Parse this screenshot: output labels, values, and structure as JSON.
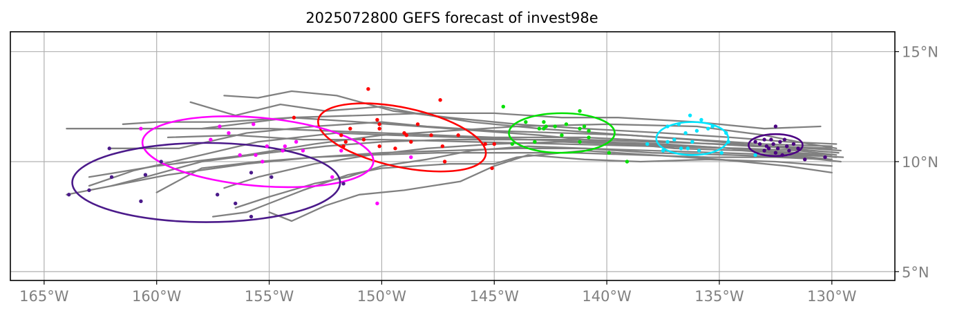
{
  "chart_data": {
    "type": "scatter",
    "title": "2025072800 GEFS forecast of invest98e",
    "xlabel": "",
    "ylabel": "",
    "xlim": [
      -166.5,
      -127.2
    ],
    "ylim": [
      4.6,
      15.9
    ],
    "grid": true,
    "x_ticks": [
      -165,
      -160,
      -155,
      -150,
      -145,
      -140,
      -135,
      -130
    ],
    "x_tick_labels": [
      "165°W",
      "160°W",
      "155°W",
      "150°W",
      "145°W",
      "140°W",
      "135°W",
      "130°W"
    ],
    "y_ticks": [
      5,
      10,
      15
    ],
    "y_tick_labels": [
      "5°N",
      "10°N",
      "15°N"
    ],
    "colors": {
      "track": "#808080",
      "day1": "#4b0082",
      "day2": "#00e5ff",
      "day3": "#00e000",
      "day4": "#ff0000",
      "day5": "#ff00ff",
      "day6": "#4b1a8a"
    },
    "tracks": [
      [
        [
          -129.6,
          10.5
        ],
        [
          -131.0,
          10.6
        ],
        [
          -133.5,
          10.7
        ],
        [
          -137,
          10.9
        ],
        [
          -141,
          11.1
        ],
        [
          -145,
          11.1
        ],
        [
          -150,
          11.3
        ],
        [
          -155,
          11.5
        ],
        [
          -160,
          11.5
        ],
        [
          -164,
          11.5
        ]
      ],
      [
        [
          -129.8,
          10.3
        ],
        [
          -131.5,
          10.5
        ],
        [
          -134,
          10.6
        ],
        [
          -138,
          10.7
        ],
        [
          -142,
          10.8
        ],
        [
          -146,
          10.9
        ],
        [
          -150,
          11.0
        ],
        [
          -153.5,
          11.0
        ],
        [
          -156.5,
          11.2
        ],
        [
          -159.5,
          11.1
        ]
      ],
      [
        [
          -129.5,
          10.2
        ],
        [
          -131.5,
          10.3
        ],
        [
          -134,
          10.5
        ],
        [
          -137,
          10.6
        ],
        [
          -140,
          10.9
        ],
        [
          -143,
          11.2
        ],
        [
          -147,
          11.5
        ],
        [
          -151,
          11.8
        ],
        [
          -154,
          12.0
        ],
        [
          -158,
          11.5
        ]
      ],
      [
        [
          -129.8,
          10.6
        ],
        [
          -131,
          10.8
        ],
        [
          -133,
          11.2
        ],
        [
          -136,
          11.6
        ],
        [
          -140,
          11.7
        ],
        [
          -144,
          11.6
        ],
        [
          -147,
          11.4
        ],
        [
          -150,
          11.2
        ],
        [
          -153,
          10.8
        ],
        [
          -156,
          10.3
        ],
        [
          -160,
          9.8
        ],
        [
          -163,
          9.3
        ]
      ],
      [
        [
          -130,
          10.1
        ],
        [
          -132,
          10.3
        ],
        [
          -135,
          10.4
        ],
        [
          -138,
          10.5
        ],
        [
          -141,
          10.6
        ],
        [
          -144,
          10.6
        ],
        [
          -147,
          10.5
        ],
        [
          -150,
          10.4
        ],
        [
          -153,
          10.2
        ],
        [
          -156,
          9.9
        ],
        [
          -159.5,
          9.4
        ],
        [
          -164,
          8.5
        ]
      ],
      [
        [
          -129.7,
          10.4
        ],
        [
          -132,
          10.6
        ],
        [
          -135,
          10.9
        ],
        [
          -139,
          11.2
        ],
        [
          -143,
          11.5
        ],
        [
          -146,
          11.8
        ],
        [
          -148.5,
          12.2
        ],
        [
          -150,
          12.5
        ],
        [
          -152.5,
          12.3
        ],
        [
          -154.5,
          12.6
        ],
        [
          -156.5,
          12.1
        ],
        [
          -158.5,
          12.7
        ]
      ],
      [
        [
          -130,
          9.5
        ],
        [
          -132,
          9.8
        ],
        [
          -135,
          10.1
        ],
        [
          -138,
          10.3
        ],
        [
          -141,
          10.5
        ],
        [
          -144,
          10.2
        ],
        [
          -145,
          9.9
        ],
        [
          -147,
          9.9
        ],
        [
          -150,
          9.7
        ],
        [
          -151.5,
          9.4
        ],
        [
          -153.5,
          8.7
        ],
        [
          -156,
          7.7
        ],
        [
          -157.5,
          7.5
        ]
      ],
      [
        [
          -130,
          9.8
        ],
        [
          -132.5,
          10.0
        ],
        [
          -135.5,
          10.1
        ],
        [
          -138.5,
          10.0
        ],
        [
          -141,
          10.1
        ],
        [
          -143.5,
          10.3
        ],
        [
          -145,
          9.8
        ],
        [
          -146.5,
          9.1
        ],
        [
          -149,
          8.7
        ],
        [
          -151,
          8.5
        ],
        [
          -152.5,
          8.0
        ],
        [
          -154,
          7.3
        ],
        [
          -155,
          7.7
        ]
      ],
      [
        [
          -129.6,
          10.0
        ],
        [
          -131.5,
          10.2
        ],
        [
          -134.5,
          10.3
        ],
        [
          -138,
          10.4
        ],
        [
          -141,
          10.6
        ],
        [
          -143.5,
          10.7
        ],
        [
          -146,
          10.5
        ],
        [
          -148,
          10.1
        ],
        [
          -150,
          9.8
        ],
        [
          -151.5,
          9.3
        ],
        [
          -153,
          9.0
        ],
        [
          -155,
          8.4
        ],
        [
          -156.5,
          7.9
        ]
      ],
      [
        [
          -129.8,
          10.2
        ],
        [
          -132,
          10.4
        ],
        [
          -134.5,
          10.6
        ],
        [
          -137.5,
          10.8
        ],
        [
          -140.5,
          10.9
        ],
        [
          -143.5,
          11.0
        ],
        [
          -146.5,
          11.1
        ],
        [
          -149.5,
          11.2
        ],
        [
          -152,
          11.3
        ],
        [
          -155.5,
          10.9
        ],
        [
          -158,
          10.3
        ],
        [
          -161,
          9.6
        ],
        [
          -163,
          8.9
        ]
      ],
      [
        [
          -130,
          10.3
        ],
        [
          -133,
          10.5
        ],
        [
          -136,
          10.7
        ],
        [
          -139.5,
          10.8
        ],
        [
          -142,
          10.9
        ],
        [
          -145,
          10.8
        ],
        [
          -148,
          10.6
        ],
        [
          -150.5,
          10.3
        ],
        [
          -153,
          9.9
        ],
        [
          -155.5,
          9.3
        ],
        [
          -157,
          8.8
        ]
      ],
      [
        [
          -129.8,
          10.8
        ],
        [
          -132,
          10.9
        ],
        [
          -134.5,
          11.1
        ],
        [
          -137.5,
          11.3
        ],
        [
          -141,
          11.5
        ],
        [
          -144,
          11.7
        ],
        [
          -147,
          12.0
        ],
        [
          -149.5,
          12.3
        ],
        [
          -152,
          13.0
        ],
        [
          -154,
          13.2
        ],
        [
          -155.5,
          12.9
        ],
        [
          -157,
          13.0
        ]
      ],
      [
        [
          -130.5,
          11.6
        ],
        [
          -133,
          11.5
        ],
        [
          -136,
          11.8
        ],
        [
          -139.5,
          12.0
        ],
        [
          -142,
          12.0
        ],
        [
          -145,
          12.2
        ],
        [
          -148,
          12.2
        ],
        [
          -151,
          12.1
        ],
        [
          -154,
          12.0
        ],
        [
          -157,
          11.8
        ],
        [
          -160,
          11.8
        ],
        [
          -161.5,
          11.7
        ]
      ],
      [
        [
          -130,
          10.6
        ],
        [
          -132.5,
          10.7
        ],
        [
          -135,
          10.8
        ],
        [
          -138,
          10.9
        ],
        [
          -141,
          11.0
        ],
        [
          -144,
          11.0
        ],
        [
          -147,
          11.0
        ],
        [
          -150,
          10.9
        ],
        [
          -152.5,
          10.7
        ],
        [
          -155,
          10.4
        ],
        [
          -158,
          10.0
        ],
        [
          -160.5,
          9.3
        ],
        [
          -162,
          8.9
        ]
      ],
      [
        [
          -130.2,
          10.1
        ],
        [
          -132.5,
          10.2
        ],
        [
          -135.5,
          10.2
        ],
        [
          -138.5,
          10.3
        ],
        [
          -141.5,
          10.4
        ],
        [
          -144.5,
          10.4
        ],
        [
          -147.5,
          10.4
        ],
        [
          -150.5,
          10.3
        ],
        [
          -153,
          10.2
        ],
        [
          -155.5,
          10.0
        ],
        [
          -158,
          9.7
        ],
        [
          -160,
          8.6
        ]
      ],
      [
        [
          -130,
          10.7
        ],
        [
          -133,
          10.8
        ],
        [
          -136,
          11.0
        ],
        [
          -139,
          11.2
        ],
        [
          -142,
          11.3
        ],
        [
          -145,
          11.4
        ],
        [
          -148,
          11.6
        ],
        [
          -150,
          11.8
        ],
        [
          -153,
          11.6
        ],
        [
          -156,
          11.3
        ],
        [
          -159,
          10.6
        ],
        [
          -162,
          10.6
        ]
      ]
    ],
    "series": [
      {
        "color": "#4b0082",
        "points": [
          [
            -130.3,
            10.2
          ],
          [
            -131.2,
            10.1
          ],
          [
            -131.5,
            10.6
          ],
          [
            -131.7,
            10.8
          ],
          [
            -131.9,
            10.5
          ],
          [
            -132.0,
            10.7
          ],
          [
            -132.1,
            11.0
          ],
          [
            -132.2,
            10.3
          ],
          [
            -132.3,
            10.9
          ],
          [
            -132.4,
            10.6
          ],
          [
            -132.5,
            11.6
          ],
          [
            -132.5,
            10.4
          ],
          [
            -132.6,
            10.8
          ],
          [
            -132.7,
            11.0
          ],
          [
            -132.8,
            10.6
          ],
          [
            -132.9,
            10.7
          ],
          [
            -133.0,
            11.0
          ],
          [
            -133.0,
            10.5
          ],
          [
            -133.2,
            10.8
          ],
          [
            -133.4,
            10.9
          ]
        ],
        "ellipse": {
          "cx": -132.5,
          "cy": 10.75,
          "rx": 1.2,
          "ry": 0.5
        }
      },
      {
        "color": "#00e5ff",
        "points": [
          [
            -136.3,
            12.1
          ],
          [
            -135.8,
            11.9
          ],
          [
            -135.3,
            11.6
          ],
          [
            -136.8,
            11.7
          ],
          [
            -137.3,
            11.6
          ],
          [
            -137.0,
            11.0
          ],
          [
            -136.5,
            11.3
          ],
          [
            -136.0,
            11.4
          ],
          [
            -135.5,
            11.5
          ],
          [
            -134.7,
            11.3
          ],
          [
            -134.6,
            10.9
          ],
          [
            -134.9,
            10.4
          ],
          [
            -136.2,
            10.9
          ],
          [
            -136.7,
            10.6
          ],
          [
            -137.5,
            10.5
          ],
          [
            -138.2,
            10.8
          ],
          [
            -137.3,
            10.9
          ],
          [
            -135.9,
            10.5
          ],
          [
            -136.4,
            10.6
          ],
          [
            -133.4,
            10.3
          ]
        ],
        "ellipse": {
          "cx": -136.2,
          "cy": 11.05,
          "rx": 1.6,
          "ry": 0.75
        }
      },
      {
        "color": "#00e000",
        "points": [
          [
            -144.6,
            12.5
          ],
          [
            -141.2,
            12.3
          ],
          [
            -142.8,
            11.8
          ],
          [
            -142.3,
            11.6
          ],
          [
            -143.0,
            11.5
          ],
          [
            -141.2,
            11.5
          ],
          [
            -140.8,
            11.4
          ],
          [
            -141.8,
            11.7
          ],
          [
            -143.6,
            11.8
          ],
          [
            -142.0,
            11.2
          ],
          [
            -140.8,
            11.1
          ],
          [
            -141.2,
            10.9
          ],
          [
            -142.7,
            11.6
          ],
          [
            -143.2,
            10.9
          ],
          [
            -144.2,
            10.8
          ],
          [
            -139.9,
            10.4
          ],
          [
            -139.1,
            10.0
          ],
          [
            -142.8,
            11.5
          ],
          [
            -141.0,
            11.6
          ]
        ],
        "ellipse": {
          "cx": -142.0,
          "cy": 11.3,
          "rx": 2.35,
          "ry": 0.9
        }
      },
      {
        "color": "#ff0000",
        "points": [
          [
            -150.6,
            13.3
          ],
          [
            -147.4,
            12.8
          ],
          [
            -153.9,
            12.0
          ],
          [
            -150.2,
            11.9
          ],
          [
            -150.1,
            11.7
          ],
          [
            -150.1,
            11.5
          ],
          [
            -151.4,
            11.5
          ],
          [
            -148.4,
            11.7
          ],
          [
            -149.0,
            11.3
          ],
          [
            -148.9,
            11.2
          ],
          [
            -147.8,
            11.2
          ],
          [
            -146.6,
            11.2
          ],
          [
            -151.8,
            11.2
          ],
          [
            -151.6,
            10.9
          ],
          [
            -151.7,
            10.7
          ],
          [
            -150.8,
            11.0
          ],
          [
            -150.1,
            10.7
          ],
          [
            -149.4,
            10.6
          ],
          [
            -148.7,
            10.9
          ],
          [
            -147.3,
            10.7
          ],
          [
            -145.4,
            10.8
          ],
          [
            -145.0,
            10.8
          ],
          [
            -147.2,
            10.0
          ],
          [
            -145.1,
            9.7
          ]
        ],
        "ellipse": {
          "cx": -149.1,
          "cy": 11.1,
          "rx": 3.8,
          "ry": 1.35,
          "rotate": 12
        }
      },
      {
        "color": "#ff00ff",
        "points": [
          [
            -160.7,
            11.5
          ],
          [
            -157.2,
            11.6
          ],
          [
            -155.7,
            11.7
          ],
          [
            -157.6,
            11.0
          ],
          [
            -156.8,
            11.3
          ],
          [
            -153.8,
            10.9
          ],
          [
            -154.3,
            10.7
          ],
          [
            -154.4,
            10.5
          ],
          [
            -155.1,
            10.7
          ],
          [
            -151.8,
            10.5
          ],
          [
            -153.5,
            10.5
          ],
          [
            -155.6,
            10.3
          ],
          [
            -156.3,
            10.3
          ],
          [
            -155.3,
            10.0
          ],
          [
            -152.2,
            9.3
          ],
          [
            -150.2,
            8.1
          ],
          [
            -148.7,
            10.2
          ]
        ],
        "ellipse": {
          "cx": -155.5,
          "cy": 10.45,
          "rx": 5.15,
          "ry": 1.55,
          "rotate": 5
        }
      },
      {
        "color": "#4b1a8a",
        "points": [
          [
            -162.1,
            10.6
          ],
          [
            -159.8,
            10.0
          ],
          [
            -160.5,
            9.4
          ],
          [
            -162.0,
            9.3
          ],
          [
            -155.8,
            9.5
          ],
          [
            -154.9,
            9.3
          ],
          [
            -151.7,
            9.0
          ],
          [
            -157.3,
            8.5
          ],
          [
            -163.9,
            8.5
          ],
          [
            -163.0,
            8.7
          ],
          [
            -160.7,
            8.2
          ],
          [
            -156.5,
            8.1
          ],
          [
            -155.8,
            7.5
          ]
        ],
        "ellipse": {
          "cx": -157.8,
          "cy": 9.05,
          "rx": 5.95,
          "ry": 1.8
        }
      }
    ]
  }
}
